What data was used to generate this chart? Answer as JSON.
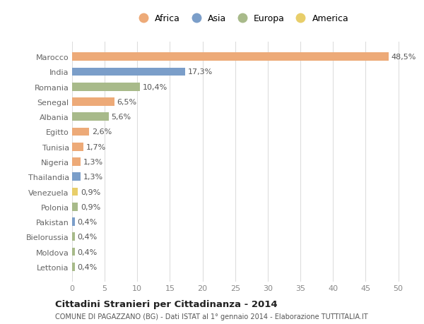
{
  "countries": [
    "Marocco",
    "India",
    "Romania",
    "Senegal",
    "Albania",
    "Egitto",
    "Tunisia",
    "Nigeria",
    "Thailandia",
    "Venezuela",
    "Polonia",
    "Pakistan",
    "Bielorussia",
    "Moldova",
    "Lettonia"
  ],
  "values": [
    48.5,
    17.3,
    10.4,
    6.5,
    5.6,
    2.6,
    1.7,
    1.3,
    1.3,
    0.9,
    0.9,
    0.4,
    0.4,
    0.4,
    0.4
  ],
  "labels": [
    "48,5%",
    "17,3%",
    "10,4%",
    "6,5%",
    "5,6%",
    "2,6%",
    "1,7%",
    "1,3%",
    "1,3%",
    "0,9%",
    "0,9%",
    "0,4%",
    "0,4%",
    "0,4%",
    "0,4%"
  ],
  "continents": [
    "Africa",
    "Asia",
    "Europa",
    "Africa",
    "Europa",
    "Africa",
    "Africa",
    "Africa",
    "Asia",
    "America",
    "Europa",
    "Asia",
    "Europa",
    "Europa",
    "Europa"
  ],
  "colors": {
    "Africa": "#EDAA78",
    "Asia": "#7B9EC9",
    "Europa": "#A8BA8A",
    "America": "#E8CE6A"
  },
  "legend_order": [
    "Africa",
    "Asia",
    "Europa",
    "America"
  ],
  "xlim": [
    0,
    52
  ],
  "xticks": [
    0,
    5,
    10,
    15,
    20,
    25,
    30,
    35,
    40,
    45,
    50
  ],
  "title": "Cittadini Stranieri per Cittadinanza - 2014",
  "subtitle": "COMUNE DI PAGAZZANO (BG) - Dati ISTAT al 1° gennaio 2014 - Elaborazione TUTTITALIA.IT",
  "bg_color": "#ffffff",
  "grid_color": "#dddddd",
  "bar_height": 0.55,
  "label_fontsize": 8,
  "tick_fontsize": 8,
  "ytick_fontsize": 8
}
